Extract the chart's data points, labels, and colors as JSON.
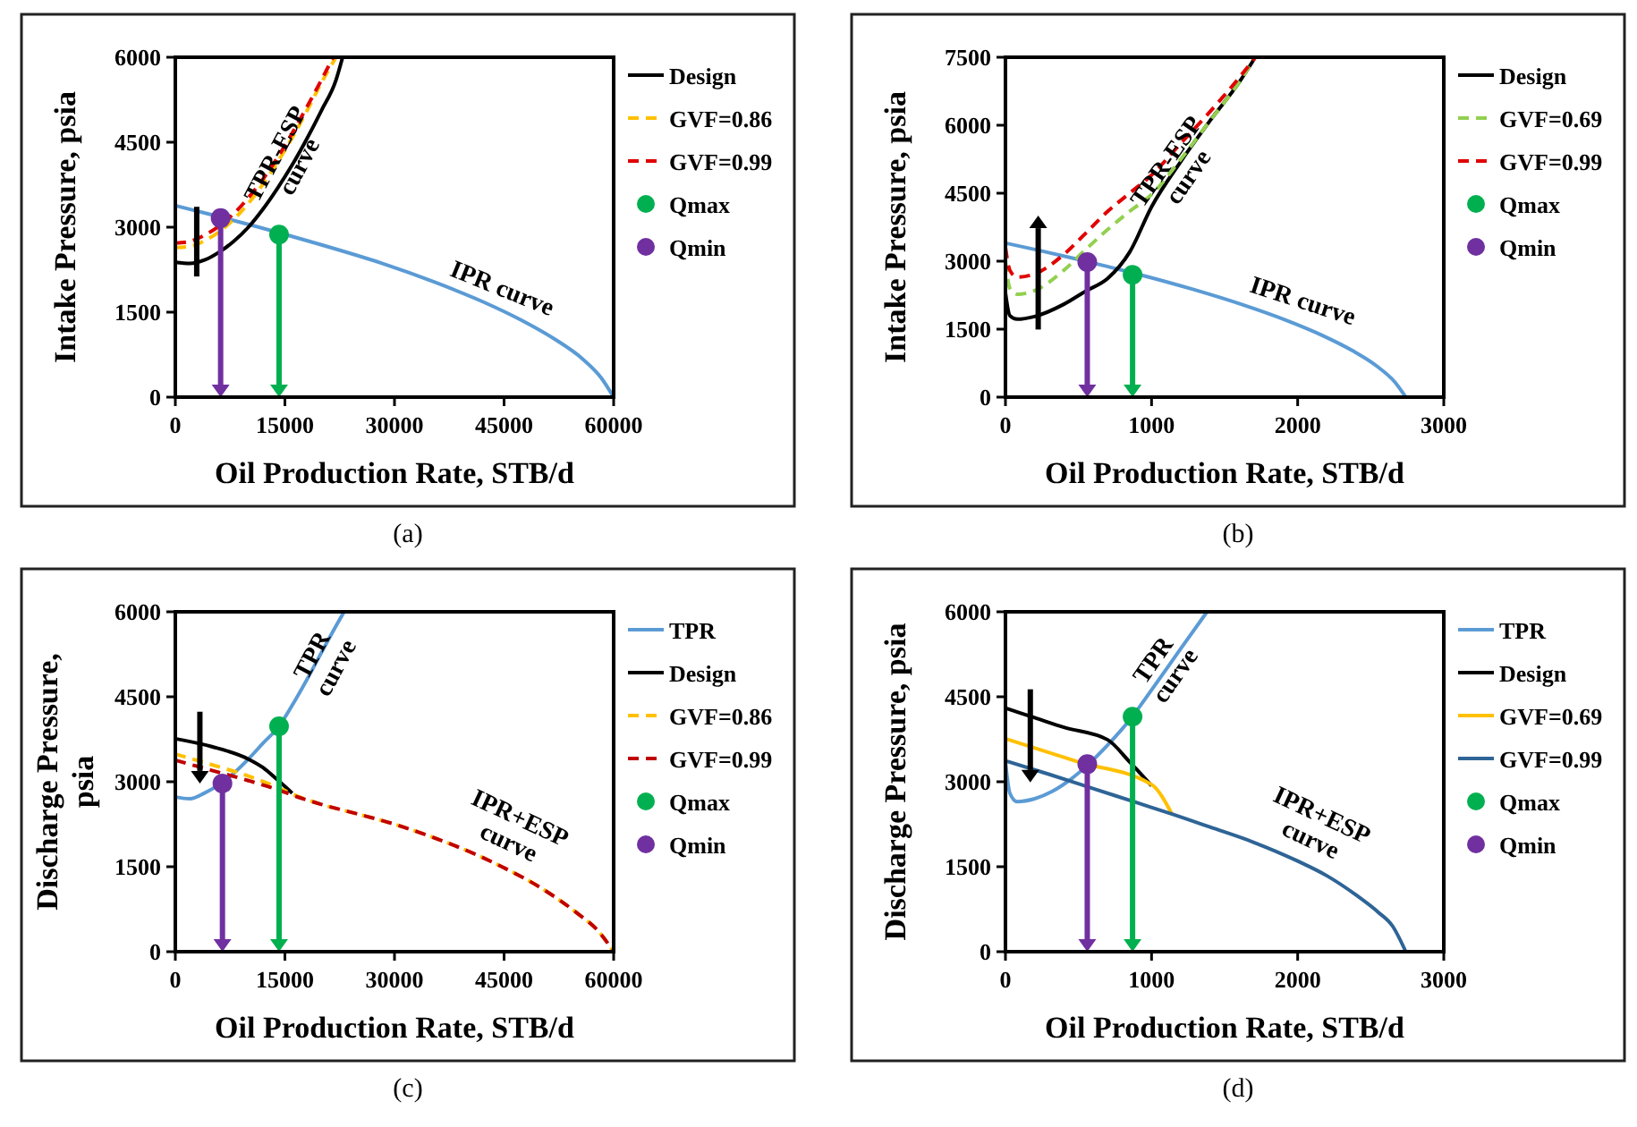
{
  "chart_data": [
    {
      "type": "line",
      "xlabel": "Oil Production Rate, STB/d",
      "ylabel": "Intake Pressure, psia",
      "xlim": [
        0,
        60000
      ],
      "ylim": [
        0,
        6000
      ],
      "xticks": [
        0,
        15000,
        30000,
        45000,
        60000
      ],
      "yticks": [
        0,
        1500,
        3000,
        4500,
        6000
      ],
      "legend": "right",
      "series": [
        {
          "color": "#5b9bd5",
          "line_style": "solid",
          "x": [
            0,
            5300,
            10300,
            15100,
            19700,
            28100,
            35500,
            42000,
            47500,
            52100,
            55700,
            58300,
            60000
          ],
          "values": [
            3380,
            3210,
            3040,
            2870,
            2700,
            2370,
            2030,
            1690,
            1350,
            1010,
            680,
            340,
            0
          ]
        },
        {
          "name": "Design",
          "color": "#000000",
          "line_style": "solid",
          "x": [
            0,
            2000,
            4000,
            6000,
            8000,
            10000,
            12000,
            14000,
            16000,
            18000,
            20000,
            22000,
            22900
          ],
          "values": [
            2380,
            2360,
            2420,
            2560,
            2750,
            3000,
            3320,
            3690,
            4100,
            4560,
            5060,
            5600,
            6000
          ]
        },
        {
          "name": "GVF=0.86",
          "color": "#ffc000",
          "line_style": "dashed",
          "x": [
            0,
            2000,
            4000,
            6000,
            8000,
            10000,
            12000,
            14000,
            16000,
            18000,
            20000,
            22000
          ],
          "values": [
            2640,
            2660,
            2760,
            2920,
            3140,
            3420,
            3760,
            4150,
            4580,
            5050,
            5550,
            6000
          ]
        },
        {
          "name": "GVF=0.99",
          "color": "#e00000",
          "line_style": "dashed",
          "x": [
            0,
            2000,
            4000,
            6000,
            8000,
            10000,
            12000,
            14000,
            16000,
            18000,
            20000,
            21600
          ],
          "values": [
            2720,
            2750,
            2860,
            3020,
            3240,
            3520,
            3850,
            4230,
            4660,
            5120,
            5600,
            6000
          ]
        },
        {
          "name": "Qmax",
          "type": "scatter",
          "marker": "circle",
          "color": "#00b050",
          "x": [
            14200
          ],
          "values": [
            2870
          ]
        },
        {
          "name": "Qmin",
          "type": "scatter",
          "marker": "circle",
          "color": "#7030a0",
          "x": [
            6200
          ],
          "values": [
            3160
          ]
        }
      ],
      "annotations": [
        {
          "text": "TPR-ESP\ncurve",
          "x": 15200,
          "y": 4190
        },
        {
          "text": "IPR curve",
          "x": 43700,
          "y": 1585
        },
        "(a)"
      ]
    },
    {
      "type": "line",
      "xlabel": "Oil Production Rate, STB/d",
      "ylabel": "Intake Pressure, psia",
      "xlim": [
        0,
        3000
      ],
      "ylim": [
        0,
        7500
      ],
      "xticks": [
        0,
        1000,
        2000,
        3000
      ],
      "yticks": [
        0,
        1500,
        3000,
        4500,
        6000,
        7500
      ],
      "legend": "right",
      "series": [
        {
          "color": "#5b9bd5",
          "line_style": "solid",
          "x": [
            0,
            241,
            471,
            690,
            899,
            1282,
            1622,
            1918,
            2170,
            2378,
            2543,
            2663,
            2740
          ],
          "values": [
            3400,
            3230,
            3060,
            2890,
            2720,
            2380,
            2040,
            1700,
            1360,
            1020,
            680,
            340,
            0
          ]
        },
        {
          "name": "Design",
          "color": "#000000",
          "line_style": "solid",
          "x": [
            0,
            30,
            80,
            200,
            400,
            550,
            700,
            850,
            1000,
            1200,
            1400,
            1600,
            1710
          ],
          "values": [
            2300,
            1800,
            1720,
            1780,
            2050,
            2340,
            2620,
            3200,
            4200,
            5200,
            6100,
            6950,
            7500
          ]
        },
        {
          "name": "GVF=0.69",
          "color": "#92d050",
          "line_style": "dashed",
          "x": [
            0,
            30,
            80,
            200,
            400,
            550,
            700,
            850,
            1000,
            1200,
            1400,
            1600,
            1710
          ],
          "values": [
            3000,
            2400,
            2270,
            2350,
            2800,
            3260,
            3700,
            4100,
            4470,
            5250,
            6100,
            6950,
            7500
          ]
        },
        {
          "name": "GVF=0.99",
          "color": "#e00000",
          "line_style": "dashed",
          "x": [
            0,
            30,
            80,
            200,
            400,
            550,
            700,
            850,
            1000,
            1200,
            1400,
            1600,
            1710
          ],
          "values": [
            3300,
            2800,
            2650,
            2720,
            3150,
            3620,
            4100,
            4500,
            4900,
            5600,
            6300,
            7050,
            7500
          ]
        },
        {
          "name": "Qmax",
          "type": "scatter",
          "marker": "circle",
          "color": "#00b050",
          "x": [
            870
          ],
          "values": [
            2700
          ]
        },
        {
          "name": "Qmin",
          "type": "scatter",
          "marker": "circle",
          "color": "#7030a0",
          "x": [
            560
          ],
          "values": [
            2980
          ]
        }
      ],
      "annotations": [
        {
          "text": "TPR-ESP\ncurve",
          "x": 1170,
          "y": 5040
        },
        {
          "text": "IPR curve",
          "x": 2000,
          "y": 1770
        },
        "(b)"
      ]
    },
    {
      "type": "line",
      "xlabel": "Oil Production Rate, STB/d",
      "ylabel": "Discharge Pressure,\npsia",
      "xlim": [
        0,
        60000
      ],
      "ylim": [
        0,
        6000
      ],
      "xticks": [
        0,
        15000,
        30000,
        45000,
        60000
      ],
      "yticks": [
        0,
        1500,
        3000,
        4500,
        6000
      ],
      "legend": "right",
      "series": [
        {
          "name": "TPR",
          "color": "#5b9bd5",
          "line_style": "solid",
          "x": [
            0,
            2000,
            4000,
            6000,
            8000,
            10000,
            12000,
            14200,
            16000,
            18000,
            20000,
            22000,
            23100
          ],
          "values": [
            2730,
            2700,
            2800,
            2950,
            3150,
            3400,
            3680,
            3980,
            4350,
            4800,
            5280,
            5750,
            6000
          ]
        },
        {
          "name": "Design",
          "color": "#000000",
          "line_style": "solid",
          "x": [
            0,
            5000,
            10000,
            12000,
            14000,
            16000
          ],
          "values": [
            3760,
            3620,
            3400,
            3250,
            3030,
            2800
          ]
        },
        {
          "name": "GVF=0.86",
          "color": "#ffc000",
          "line_style": "dashed",
          "x": [
            0,
            5000,
            10000,
            14000,
            17000,
            20000,
            25000,
            30000,
            35000,
            40000,
            45000,
            50000,
            55000,
            58000,
            60000
          ],
          "values": [
            3490,
            3300,
            3100,
            2900,
            2730,
            2600,
            2430,
            2250,
            2030,
            1780,
            1480,
            1130,
            680,
            350,
            0
          ]
        },
        {
          "name": "GVF=0.99",
          "color": "#c00000",
          "line_style": "dashed",
          "x": [
            0,
            5000,
            10000,
            14000,
            17000,
            20000,
            25000,
            30000,
            35000,
            40000,
            45000,
            50000,
            55000,
            58000,
            60000
          ],
          "values": [
            3380,
            3200,
            3020,
            2860,
            2720,
            2600,
            2430,
            2250,
            2030,
            1780,
            1480,
            1130,
            680,
            350,
            0
          ]
        },
        {
          "name": "Qmax",
          "type": "scatter",
          "marker": "circle",
          "color": "#00b050",
          "x": [
            14200
          ],
          "values": [
            3980
          ]
        },
        {
          "name": "Qmin",
          "type": "scatter",
          "marker": "circle",
          "color": "#7030a0",
          "x": [
            6450
          ],
          "values": [
            2970
          ]
        }
      ],
      "annotations": [
        {
          "text": "TPR\ncurve",
          "x": 20200,
          "y": 5130
        },
        {
          "text": "IPR+ESP\ncurve",
          "x": 44200,
          "y": 1530
        },
        "(c)"
      ]
    },
    {
      "type": "line",
      "xlabel": "Oil Production Rate, STB/d",
      "ylabel": "Discharge Pressure, psia",
      "xlim": [
        0,
        3000
      ],
      "ylim": [
        0,
        6000
      ],
      "xticks": [
        0,
        1000,
        2000,
        3000
      ],
      "yticks": [
        0,
        1500,
        3000,
        4500,
        6000
      ],
      "legend": "right",
      "series": [
        {
          "name": "TPR",
          "color": "#5b9bd5",
          "line_style": "solid",
          "x": [
            0,
            30,
            80,
            200,
            320,
            450,
            560,
            700,
            868,
            1000,
            1200,
            1380
          ],
          "values": [
            3350,
            2800,
            2650,
            2700,
            2830,
            3050,
            3290,
            3650,
            4150,
            4620,
            5350,
            6000
          ]
        },
        {
          "name": "Design",
          "color": "#000000",
          "line_style": "solid",
          "x": [
            0,
            200,
            400,
            700,
            850,
            1000
          ],
          "values": [
            4300,
            4130,
            3960,
            3740,
            3350,
            2930
          ]
        },
        {
          "name": "GVF=0.69",
          "color": "#ffc000",
          "line_style": "solid",
          "x": [
            0,
            500,
            1000,
            1140
          ],
          "values": [
            3760,
            3350,
            2950,
            2430
          ]
        },
        {
          "name": "GVF=0.99",
          "color": "#2e6496",
          "line_style": "solid",
          "x": [
            0,
            300,
            600,
            900,
            1140,
            1400,
            1700,
            2000,
            2200,
            2400,
            2550,
            2650,
            2740
          ],
          "values": [
            3370,
            3130,
            2880,
            2630,
            2430,
            2200,
            1930,
            1600,
            1340,
            1000,
            700,
            450,
            0
          ]
        },
        {
          "name": "Qmax",
          "type": "scatter",
          "marker": "circle",
          "color": "#00b050",
          "x": [
            870
          ],
          "values": [
            4150
          ]
        },
        {
          "name": "Qmin",
          "type": "scatter",
          "marker": "circle",
          "color": "#7030a0",
          "x": [
            560
          ],
          "values": [
            3310
          ]
        }
      ],
      "annotations": [
        {
          "text": "TPR\ncurve",
          "x": 1080,
          "y": 5020
        },
        {
          "text": "IPR+ESP\ncurve",
          "x": 2017,
          "y": 1580
        },
        "(d)"
      ]
    }
  ]
}
